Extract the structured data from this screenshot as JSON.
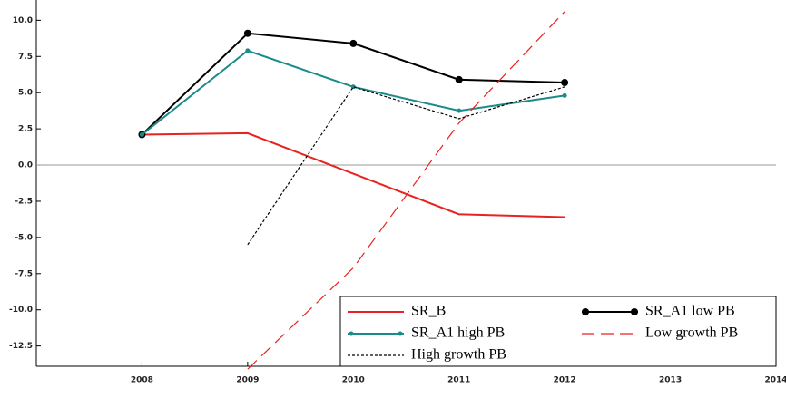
{
  "chart_data": {
    "type": "line",
    "x": [
      2008,
      2009,
      2010,
      2011,
      2012
    ],
    "xlim": [
      2007,
      2014
    ],
    "xticks": [
      2008,
      2009,
      2010,
      2011,
      2012,
      2013,
      2014
    ],
    "ylim": [
      -13.9,
      11.4
    ],
    "yticks": [
      {
        "value": 10,
        "label": "10.0"
      },
      7.5,
      {
        "value": 5,
        "label": "5.0"
      },
      2.5,
      {
        "value": 0,
        "label": "0.0"
      },
      -2.5,
      {
        "value": -5,
        "label": "-5.0"
      },
      -7.5,
      {
        "value": -10,
        "label": "-10.0"
      },
      -12.5
    ],
    "zero_line": true,
    "legend": "lower right",
    "series": [
      {
        "name": "SR_B",
        "color": "#e8231f",
        "style": "solid",
        "marker": "none",
        "values": [
          2.1,
          2.2,
          -0.6,
          -3.4,
          -3.6
        ]
      },
      {
        "name": "SR_A1 low  PB",
        "color": "#000000",
        "style": "solid",
        "marker": "circle",
        "values": [
          2.1,
          9.1,
          8.4,
          5.9,
          5.7
        ]
      },
      {
        "name": "SR_A1 high  PB",
        "color": "#1a8a8a",
        "style": "solid",
        "marker": "plus",
        "values": [
          2.1,
          7.9,
          5.4,
          3.75,
          4.8
        ]
      },
      {
        "name": "Low growth PB",
        "color": "#e8231f",
        "style": "dashed",
        "marker": "none",
        "values": [
          null,
          -14.1,
          -7.1,
          2.9,
          10.6
        ]
      },
      {
        "name": "High growth  PB",
        "color": "#000000",
        "style": "dotted",
        "marker": "none",
        "values": [
          null,
          -5.5,
          5.4,
          3.2,
          5.4
        ]
      }
    ]
  }
}
